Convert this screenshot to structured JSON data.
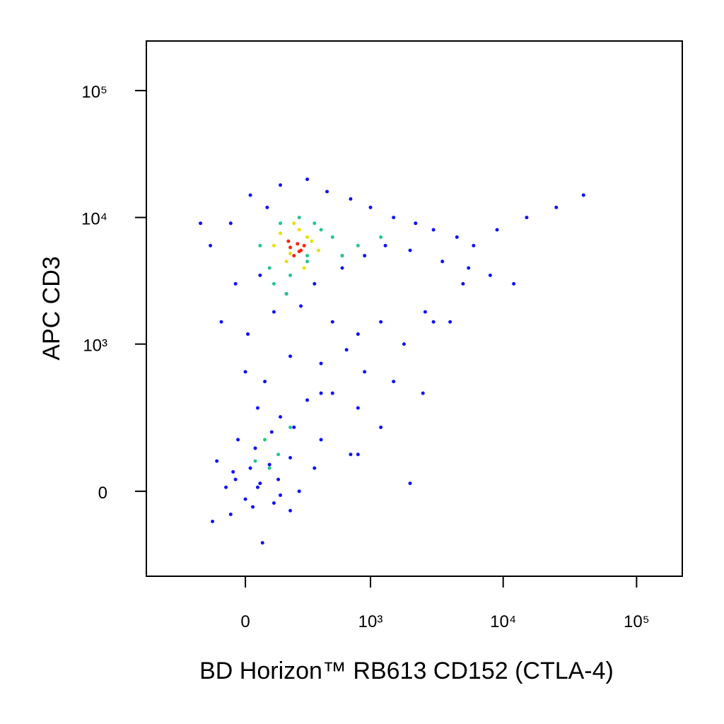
{
  "chart_data": {
    "type": "scatter",
    "x_label": "BD Horizon™ RB613 CD152 (CTLA-4)",
    "y_label": "APC CD3",
    "scale": "biexponential",
    "xlim": [
      -625,
      220000
    ],
    "ylim": [
      -310,
      246000
    ],
    "xticks": [
      0,
      {
        "value": 1000,
        "label": "10³"
      },
      {
        "value": 10000,
        "label": "10⁴"
      },
      {
        "value": 100000,
        "label": "10⁵"
      }
    ],
    "yticks": [
      0,
      {
        "value": 1000,
        "label": "10³"
      },
      {
        "value": 10000,
        "label": "10⁴"
      },
      {
        "value": 100000,
        "label": "10⁵"
      }
    ],
    "series": [
      {
        "color": "#1010ff",
        "x": [
          -150,
          -60,
          20,
          90,
          150,
          300,
          450,
          700,
          1000,
          1500,
          2200,
          3000,
          4500,
          6000,
          9000,
          15000,
          25000,
          40000,
          -40,
          60,
          180,
          350,
          600,
          900,
          1300,
          2000,
          3500,
          5500,
          8000,
          12000,
          -100,
          10,
          120,
          260,
          500,
          800,
          1200,
          1800,
          2600,
          4000,
          0,
          80,
          200,
          400,
          650,
          900,
          1500,
          2500,
          50,
          150,
          300,
          500,
          800,
          1200,
          -30,
          40,
          110,
          220,
          400,
          700,
          -120,
          -50,
          20,
          100,
          200,
          350,
          -80,
          0,
          60,
          140,
          250,
          -60,
          30,
          120,
          200,
          -140,
          -40,
          50,
          150,
          5000,
          2000,
          800,
          3000,
          600,
          -200,
          70,
          400
        ],
        "y": [
          6000,
          9000,
          15000,
          12000,
          18000,
          20000,
          16000,
          14000,
          12000,
          10000,
          9000,
          8000,
          7000,
          6000,
          8000,
          10000,
          12000,
          15000,
          3000,
          3500,
          2500,
          3000,
          4000,
          5000,
          6000,
          5500,
          4500,
          4000,
          3500,
          3000,
          1500,
          1200,
          1800,
          2000,
          1500,
          1200,
          1500,
          1000,
          1800,
          1500,
          600,
          500,
          800,
          700,
          900,
          600,
          500,
          400,
          300,
          250,
          350,
          400,
          300,
          200,
          150,
          120,
          180,
          200,
          150,
          100,
          80,
          50,
          60,
          70,
          90,
          60,
          10,
          -20,
          20,
          30,
          0,
          -60,
          -40,
          -30,
          -50,
          -80,
          30,
          10,
          -10,
          3000,
          20,
          100,
          1500,
          5000,
          9000,
          -150,
          400
        ]
      },
      {
        "color": "#20c890",
        "x": [
          100,
          200,
          300,
          400,
          150,
          250,
          350,
          500,
          60,
          120,
          180,
          300,
          80,
          140,
          40,
          100,
          200,
          800,
          1200,
          600
        ],
        "y": [
          4000,
          3500,
          4500,
          8000,
          9000,
          10000,
          9000,
          7000,
          6000,
          3000,
          2500,
          5000,
          150,
          100,
          80,
          60,
          200,
          6000,
          7000,
          5000
        ]
      },
      {
        "color": "#e8e000",
        "x": [
          150,
          250,
          330,
          180,
          280,
          120,
          380,
          220,
          300,
          200
        ],
        "y": [
          7500,
          8000,
          6500,
          4500,
          4000,
          6000,
          5500,
          9000,
          7000,
          5200
        ]
      },
      {
        "color": "#ff2000",
        "x": [
          200,
          240,
          260,
          220,
          280,
          190,
          250
        ],
        "y": [
          5800,
          6200,
          5500,
          5000,
          6000,
          6500,
          5400
        ]
      }
    ]
  }
}
